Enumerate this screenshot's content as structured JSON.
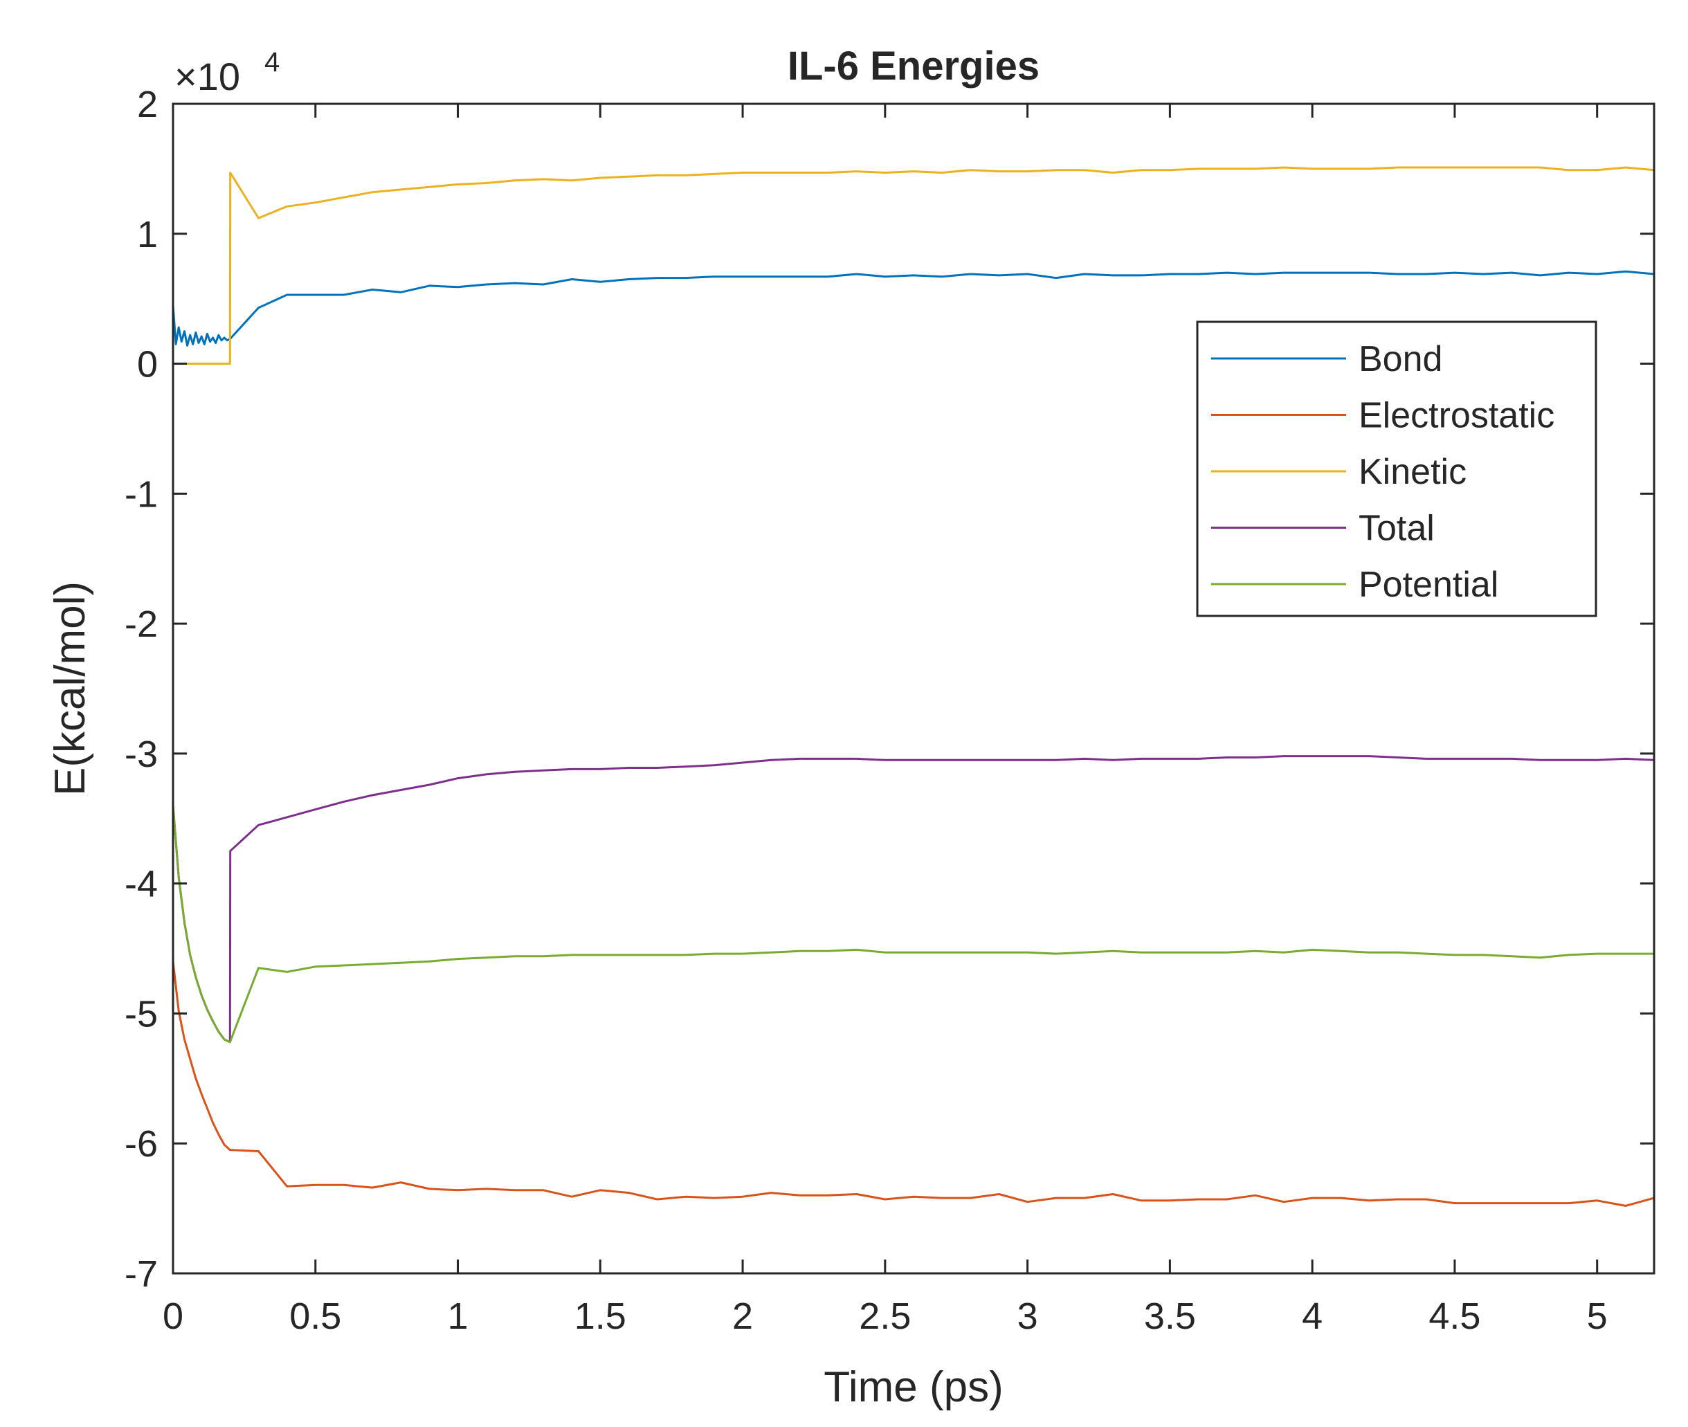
{
  "chart_data": {
    "type": "line",
    "title": "IL-6 Energies",
    "xlabel": "Time (ps)",
    "ylabel": "E(kcal/mol)",
    "y_multiplier": "×10",
    "y_multiplier_exp": "4",
    "xlim": [
      0,
      5.2
    ],
    "ylim": [
      -7,
      2
    ],
    "xticks": [
      0,
      0.5,
      1,
      1.5,
      2,
      2.5,
      3,
      3.5,
      4,
      4.5,
      5
    ],
    "xtick_labels": [
      "0",
      "0.5",
      "1",
      "1.5",
      "2",
      "2.5",
      "3",
      "3.5",
      "4",
      "4.5",
      "5"
    ],
    "yticks": [
      -7,
      -6,
      -5,
      -4,
      -3,
      -2,
      -1,
      0,
      1,
      2
    ],
    "ytick_labels": [
      "-7",
      "-6",
      "-5",
      "-4",
      "-3",
      "-2",
      "-1",
      "0",
      "1",
      "2"
    ],
    "legend_position": "top-right",
    "series": [
      {
        "name": "Bond",
        "color": "#0072BD",
        "x": [
          0,
          0.01,
          0.02,
          0.03,
          0.04,
          0.05,
          0.06,
          0.07,
          0.08,
          0.09,
          0.1,
          0.11,
          0.12,
          0.13,
          0.14,
          0.15,
          0.16,
          0.17,
          0.18,
          0.19,
          0.2,
          0.3,
          0.4,
          0.5,
          0.6,
          0.7,
          0.8,
          0.9,
          1.0,
          1.1,
          1.2,
          1.3,
          1.4,
          1.5,
          1.6,
          1.7,
          1.8,
          1.9,
          2.0,
          2.1,
          2.2,
          2.3,
          2.4,
          2.5,
          2.6,
          2.7,
          2.8,
          2.9,
          3.0,
          3.1,
          3.2,
          3.3,
          3.4,
          3.5,
          3.6,
          3.7,
          3.8,
          3.9,
          4.0,
          4.1,
          4.2,
          4.3,
          4.4,
          4.5,
          4.6,
          4.7,
          4.8,
          4.9,
          5.0,
          5.1,
          5.2
        ],
        "y": [
          0.45,
          0.15,
          0.28,
          0.17,
          0.25,
          0.14,
          0.22,
          0.15,
          0.24,
          0.16,
          0.21,
          0.15,
          0.23,
          0.17,
          0.2,
          0.16,
          0.22,
          0.18,
          0.2,
          0.18,
          0.19,
          0.43,
          0.53,
          0.53,
          0.53,
          0.57,
          0.55,
          0.6,
          0.59,
          0.61,
          0.62,
          0.61,
          0.65,
          0.63,
          0.65,
          0.66,
          0.66,
          0.67,
          0.67,
          0.67,
          0.67,
          0.67,
          0.69,
          0.67,
          0.68,
          0.67,
          0.69,
          0.68,
          0.69,
          0.66,
          0.69,
          0.68,
          0.68,
          0.69,
          0.69,
          0.7,
          0.69,
          0.7,
          0.7,
          0.7,
          0.7,
          0.69,
          0.69,
          0.7,
          0.69,
          0.7,
          0.68,
          0.7,
          0.69,
          0.71,
          0.69
        ]
      },
      {
        "name": "Electrostatic",
        "color": "#D95319",
        "x": [
          0,
          0.02,
          0.04,
          0.06,
          0.08,
          0.1,
          0.12,
          0.14,
          0.16,
          0.18,
          0.2,
          0.3,
          0.4,
          0.5,
          0.6,
          0.7,
          0.8,
          0.9,
          1.0,
          1.1,
          1.2,
          1.3,
          1.4,
          1.5,
          1.6,
          1.7,
          1.8,
          1.9,
          2.0,
          2.1,
          2.2,
          2.3,
          2.4,
          2.5,
          2.6,
          2.7,
          2.8,
          2.9,
          3.0,
          3.1,
          3.2,
          3.3,
          3.4,
          3.5,
          3.6,
          3.7,
          3.8,
          3.9,
          4.0,
          4.1,
          4.2,
          4.3,
          4.4,
          4.5,
          4.6,
          4.7,
          4.8,
          4.9,
          5.0,
          5.1,
          5.2
        ],
        "y": [
          -4.6,
          -4.98,
          -5.2,
          -5.35,
          -5.5,
          -5.62,
          -5.73,
          -5.84,
          -5.93,
          -6.01,
          -6.05,
          -6.06,
          -6.33,
          -6.32,
          -6.32,
          -6.34,
          -6.3,
          -6.35,
          -6.36,
          -6.35,
          -6.36,
          -6.36,
          -6.41,
          -6.36,
          -6.38,
          -6.43,
          -6.41,
          -6.42,
          -6.41,
          -6.38,
          -6.4,
          -6.4,
          -6.39,
          -6.43,
          -6.41,
          -6.42,
          -6.42,
          -6.39,
          -6.45,
          -6.42,
          -6.42,
          -6.39,
          -6.44,
          -6.44,
          -6.43,
          -6.43,
          -6.4,
          -6.45,
          -6.42,
          -6.42,
          -6.44,
          -6.43,
          -6.43,
          -6.46,
          -6.46,
          -6.46,
          -6.46,
          -6.46,
          -6.44,
          -6.48,
          -6.42
        ]
      },
      {
        "name": "Kinetic",
        "color": "#EDB120",
        "x": [
          0,
          0.2,
          0.201,
          0.3,
          0.4,
          0.5,
          0.6,
          0.7,
          0.8,
          0.9,
          1.0,
          1.1,
          1.2,
          1.3,
          1.4,
          1.5,
          1.6,
          1.7,
          1.8,
          1.9,
          2.0,
          2.1,
          2.2,
          2.3,
          2.4,
          2.5,
          2.6,
          2.7,
          2.8,
          2.9,
          3.0,
          3.1,
          3.2,
          3.3,
          3.4,
          3.5,
          3.6,
          3.7,
          3.8,
          3.9,
          4.0,
          4.1,
          4.2,
          4.3,
          4.4,
          4.5,
          4.6,
          4.7,
          4.8,
          4.9,
          5.0,
          5.1,
          5.2
        ],
        "y": [
          0.0,
          0.0,
          1.47,
          1.12,
          1.21,
          1.24,
          1.28,
          1.32,
          1.34,
          1.36,
          1.38,
          1.39,
          1.41,
          1.42,
          1.41,
          1.43,
          1.44,
          1.45,
          1.45,
          1.46,
          1.47,
          1.47,
          1.47,
          1.47,
          1.48,
          1.47,
          1.48,
          1.47,
          1.49,
          1.48,
          1.48,
          1.49,
          1.49,
          1.47,
          1.49,
          1.49,
          1.5,
          1.5,
          1.5,
          1.51,
          1.5,
          1.5,
          1.5,
          1.51,
          1.51,
          1.51,
          1.51,
          1.51,
          1.51,
          1.49,
          1.49,
          1.51,
          1.49
        ]
      },
      {
        "name": "Total",
        "color": "#7E2F8E",
        "x": [
          0,
          0.02,
          0.04,
          0.06,
          0.08,
          0.1,
          0.12,
          0.14,
          0.16,
          0.18,
          0.2,
          0.201,
          0.3,
          0.4,
          0.5,
          0.6,
          0.7,
          0.8,
          0.9,
          1.0,
          1.1,
          1.2,
          1.3,
          1.4,
          1.5,
          1.6,
          1.7,
          1.8,
          1.9,
          2.0,
          2.1,
          2.2,
          2.3,
          2.4,
          2.5,
          2.6,
          2.7,
          2.8,
          2.9,
          3.0,
          3.1,
          3.2,
          3.3,
          3.4,
          3.5,
          3.6,
          3.7,
          3.8,
          3.9,
          4.0,
          4.1,
          4.2,
          4.3,
          4.4,
          4.5,
          4.6,
          4.7,
          4.8,
          4.9,
          5.0,
          5.1,
          5.2
        ],
        "y": [
          -3.4,
          -3.95,
          -4.3,
          -4.55,
          -4.72,
          -4.86,
          -4.97,
          -5.06,
          -5.14,
          -5.2,
          -5.22,
          -3.75,
          -3.55,
          -3.49,
          -3.43,
          -3.37,
          -3.32,
          -3.28,
          -3.24,
          -3.19,
          -3.16,
          -3.14,
          -3.13,
          -3.12,
          -3.12,
          -3.11,
          -3.11,
          -3.1,
          -3.09,
          -3.07,
          -3.05,
          -3.04,
          -3.04,
          -3.04,
          -3.05,
          -3.05,
          -3.05,
          -3.05,
          -3.05,
          -3.05,
          -3.05,
          -3.04,
          -3.05,
          -3.04,
          -3.04,
          -3.04,
          -3.03,
          -3.03,
          -3.02,
          -3.02,
          -3.02,
          -3.02,
          -3.03,
          -3.04,
          -3.04,
          -3.04,
          -3.04,
          -3.05,
          -3.05,
          -3.05,
          -3.04,
          -3.05
        ]
      },
      {
        "name": "Potential",
        "color": "#77AC30",
        "x": [
          0,
          0.02,
          0.04,
          0.06,
          0.08,
          0.1,
          0.12,
          0.14,
          0.16,
          0.18,
          0.2,
          0.3,
          0.4,
          0.5,
          0.6,
          0.7,
          0.8,
          0.9,
          1.0,
          1.1,
          1.2,
          1.3,
          1.4,
          1.5,
          1.6,
          1.7,
          1.8,
          1.9,
          2.0,
          2.1,
          2.2,
          2.3,
          2.4,
          2.5,
          2.6,
          2.7,
          2.8,
          2.9,
          3.0,
          3.1,
          3.2,
          3.3,
          3.4,
          3.5,
          3.6,
          3.7,
          3.8,
          3.9,
          4.0,
          4.1,
          4.2,
          4.3,
          4.4,
          4.5,
          4.6,
          4.7,
          4.8,
          4.9,
          5.0,
          5.1,
          5.2
        ],
        "y": [
          -3.4,
          -3.95,
          -4.3,
          -4.55,
          -4.72,
          -4.86,
          -4.97,
          -5.06,
          -5.14,
          -5.2,
          -5.22,
          -4.65,
          -4.68,
          -4.64,
          -4.63,
          -4.62,
          -4.61,
          -4.6,
          -4.58,
          -4.57,
          -4.56,
          -4.56,
          -4.55,
          -4.55,
          -4.55,
          -4.55,
          -4.55,
          -4.54,
          -4.54,
          -4.53,
          -4.52,
          -4.52,
          -4.51,
          -4.53,
          -4.53,
          -4.53,
          -4.53,
          -4.53,
          -4.53,
          -4.54,
          -4.53,
          -4.52,
          -4.53,
          -4.53,
          -4.53,
          -4.53,
          -4.52,
          -4.53,
          -4.51,
          -4.52,
          -4.53,
          -4.53,
          -4.54,
          -4.55,
          -4.55,
          -4.56,
          -4.57,
          -4.55,
          -4.54,
          -4.54,
          -4.54
        ]
      }
    ]
  }
}
